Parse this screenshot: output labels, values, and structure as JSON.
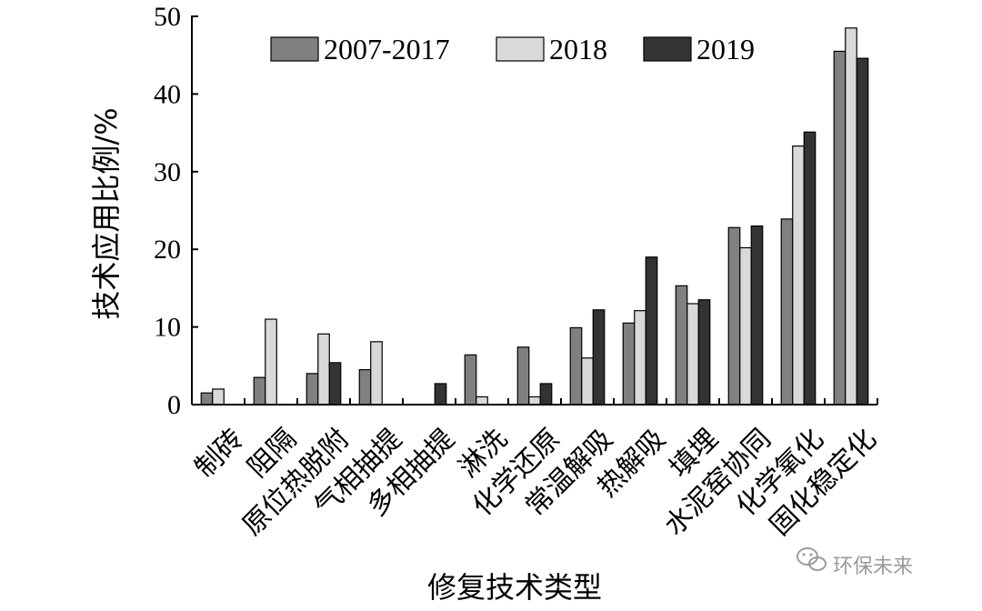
{
  "chart_data": {
    "type": "bar",
    "title": "",
    "xlabel": "修复技术类型",
    "ylabel": "技术应用比例/%",
    "ylim": [
      0,
      50
    ],
    "yticks": [
      0,
      10,
      20,
      30,
      40,
      50
    ],
    "grid": false,
    "legend_position": "top",
    "categories": [
      "制砖",
      "阻隔",
      "原位热脱附",
      "气相抽提",
      "多相抽提",
      "淋洗",
      "化学还原",
      "常温解吸",
      "热解吸",
      "填埋",
      "水泥窑协同",
      "化学氧化",
      "固化稳定化"
    ],
    "series": [
      {
        "name": "2007-2017",
        "color": "#808080",
        "values": [
          1.5,
          3.5,
          4.0,
          4.5,
          0,
          6.4,
          7.4,
          9.9,
          10.5,
          15.3,
          22.8,
          23.9,
          45.5
        ]
      },
      {
        "name": "2018",
        "color": "#d9d9d9",
        "values": [
          2.0,
          11.0,
          9.1,
          8.1,
          0,
          1.0,
          1.0,
          6.0,
          12.1,
          13.0,
          20.2,
          33.3,
          48.5
        ]
      },
      {
        "name": "2019",
        "color": "#333333",
        "values": [
          0,
          0,
          5.4,
          0,
          2.7,
          0,
          2.7,
          12.2,
          19.0,
          13.5,
          23.0,
          35.1,
          44.6
        ]
      }
    ]
  },
  "watermark": {
    "icon": "wechat-icon",
    "text": "环保未来"
  }
}
